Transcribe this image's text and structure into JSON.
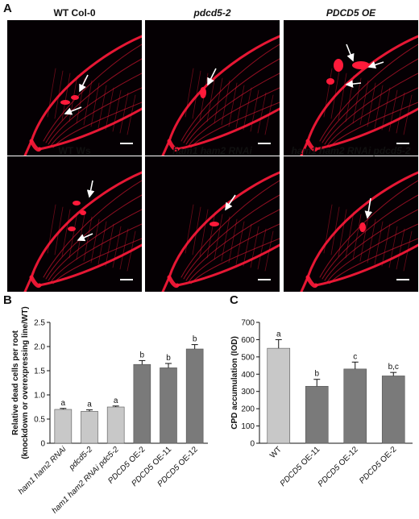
{
  "panel_a": {
    "letter": "A",
    "images": [
      {
        "title": "WT Col-0",
        "italic": false
      },
      {
        "title": "pdcd5-2",
        "italic": true
      },
      {
        "title": "PDCD5 OE",
        "italic": true
      },
      {
        "title": "WT Ws",
        "italic": false
      },
      {
        "title": "ham1 ham2 RNAi",
        "italic": true
      },
      {
        "title": "ham1 ham2 RNAi pdcd5-2",
        "italic": true
      }
    ]
  },
  "panel_b": {
    "letter": "B"
  },
  "panel_c": {
    "letter": "C"
  },
  "colors": {
    "light_bar": "#c8c8c8",
    "dark_bar": "#7a7a7a",
    "fluorescence": "#ff1a3a"
  },
  "chart_data": [
    {
      "type": "bar",
      "categories": [
        "ham1 ham2 RNAi",
        "pdcd5-2",
        "ham1 ham2 RNAi pdc5-2",
        "PDCD5 OE-2",
        "PDCD5 OE-11",
        "PDCD5 OE-12"
      ],
      "values": [
        0.7,
        0.66,
        0.75,
        1.63,
        1.56,
        1.95
      ],
      "errors": [
        0.02,
        0.03,
        0.02,
        0.08,
        0.09,
        0.09
      ],
      "significance": [
        "a",
        "a",
        "a",
        "b",
        "b",
        "b"
      ],
      "ylabel": "Relative dead cells per root (knockdown or overexpressing line/WT)",
      "ylim": [
        0,
        2.5
      ],
      "yticks": [
        "0",
        "0.5",
        "1.0",
        "1.5",
        "2.0",
        "2.5"
      ],
      "bar_shades": [
        "light",
        "light",
        "light",
        "dark",
        "dark",
        "dark"
      ],
      "grid": false
    },
    {
      "type": "bar",
      "categories": [
        "WT",
        "PDCD5 OE-11",
        "PDCD5 OE-12",
        "PDCD5 OE-2"
      ],
      "values": [
        550,
        330,
        430,
        390
      ],
      "errors": [
        50,
        40,
        40,
        20
      ],
      "significance": [
        "a",
        "b",
        "c",
        "b,c"
      ],
      "ylabel": "CPD accumulation (IOD)",
      "ylim": [
        0,
        700
      ],
      "yticks": [
        "0",
        "100",
        "200",
        "300",
        "400",
        "500",
        "600",
        "700"
      ],
      "bar_shades": [
        "light",
        "dark",
        "dark",
        "dark"
      ],
      "grid": false
    }
  ]
}
